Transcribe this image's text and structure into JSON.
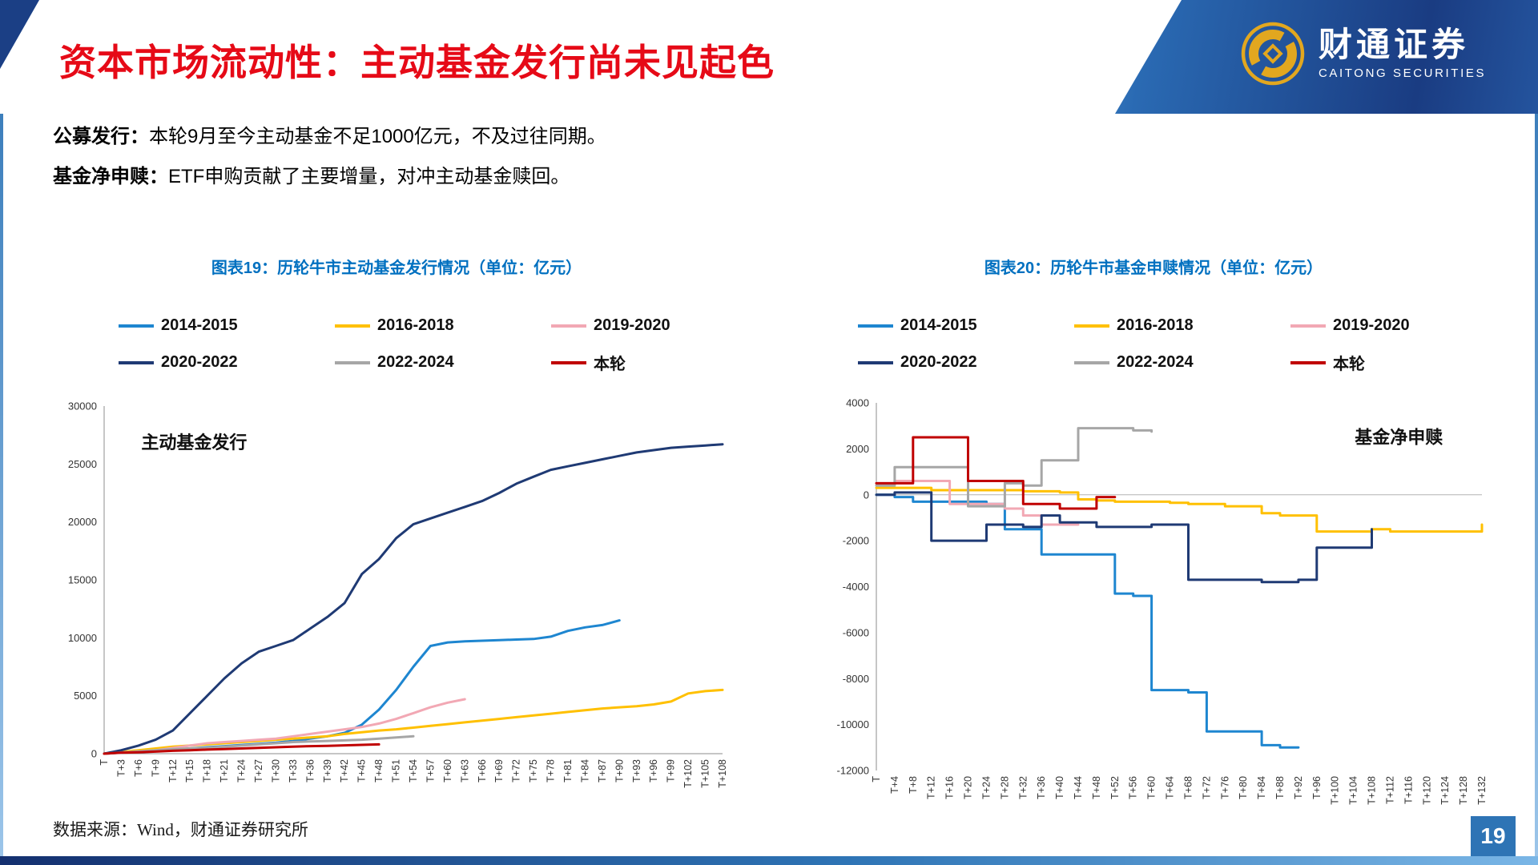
{
  "header": {
    "title": "资本市场流动性：主动基金发行尚未见起色",
    "logo_cn": "财通证券",
    "logo_en": "CAITONG SECURITIES"
  },
  "intro": [
    {
      "label": "公募发行：",
      "text": "本轮9月至今主动基金不足1000亿元，不及过往同期。"
    },
    {
      "label": "基金净申赎：",
      "text": "ETF申购贡献了主要增量，对冲主动基金赎回。"
    }
  ],
  "footer": {
    "source": "数据来源：Wind，财通证券研究所",
    "page_number": "19"
  },
  "colors": {
    "title_red": "#e60a17",
    "caption_blue": "#0070c0",
    "header_navy": "#1b3f85",
    "page_box_blue": "#2e74b5",
    "logo_gold": "#e2a71f",
    "axis_gray": "#8c8c8c"
  },
  "chart_data": [
    {
      "type": "line",
      "title": "图表19：历轮牛市主动基金发行情况（单位：亿元）",
      "inner_label": "主动基金发行",
      "inner_label_pos": [
        0.06,
        0.09
      ],
      "ylim": [
        0,
        30000
      ],
      "ytick_step": 5000,
      "xmax": 108,
      "xtick_step": 3,
      "grid": false,
      "legend_position": "top",
      "step_line": false,
      "zero_line": false,
      "x_ticks": [
        "T",
        "T+3",
        "T+6",
        "T+9",
        "T+12",
        "T+15",
        "T+18",
        "T+21",
        "T+24",
        "T+27",
        "T+30",
        "T+33",
        "T+36",
        "T+39",
        "T+42",
        "T+45",
        "T+48",
        "T+51",
        "T+54",
        "T+57",
        "T+60",
        "T+63",
        "T+66",
        "T+69",
        "T+72",
        "T+75",
        "T+78",
        "T+81",
        "T+84",
        "T+87",
        "T+90",
        "T+93",
        "T+96",
        "T+99",
        "T+102",
        "T+105",
        "T+108"
      ],
      "series": [
        {
          "name": "2014-2015",
          "color": "#1e86d0",
          "step": 3,
          "values": [
            0,
            100,
            150,
            250,
            350,
            450,
            550,
            650,
            750,
            850,
            950,
            1100,
            1300,
            1500,
            1800,
            2500,
            3800,
            5500,
            7500,
            9300,
            9600,
            9700,
            9750,
            9800,
            9850,
            9900,
            10100,
            10600,
            10900,
            11100,
            11500
          ]
        },
        {
          "name": "2016-2018",
          "color": "#ffc000",
          "step": 3,
          "values": [
            0,
            150,
            300,
            450,
            600,
            700,
            800,
            900,
            1000,
            1100,
            1200,
            1300,
            1400,
            1500,
            1700,
            1850,
            2000,
            2100,
            2250,
            2400,
            2550,
            2700,
            2850,
            3000,
            3150,
            3300,
            3450,
            3600,
            3750,
            3900,
            4000,
            4100,
            4250,
            4500,
            5200,
            5400,
            5500
          ]
        },
        {
          "name": "2019-2020",
          "color": "#f2a8b4",
          "step": 3,
          "values": [
            0,
            100,
            200,
            300,
            500,
            700,
            900,
            1000,
            1100,
            1200,
            1300,
            1500,
            1700,
            1900,
            2100,
            2300,
            2600,
            3000,
            3500,
            4000,
            4400,
            4700
          ]
        },
        {
          "name": "2020-2022",
          "color": "#1f3a74",
          "step": 3,
          "values": [
            0,
            300,
            700,
            1200,
            2000,
            3500,
            5000,
            6500,
            7800,
            8800,
            9300,
            9800,
            10800,
            11800,
            13000,
            15500,
            16800,
            18600,
            19800,
            20300,
            20800,
            21300,
            21800,
            22500,
            23300,
            23900,
            24500,
            24800,
            25100,
            25400,
            25700,
            26000,
            26200,
            26400,
            26500,
            26600,
            26700
          ]
        },
        {
          "name": "2022-2024",
          "color": "#a6a6a6",
          "step": 3,
          "values": [
            0,
            100,
            200,
            300,
            400,
            450,
            500,
            600,
            700,
            800,
            900,
            1000,
            1050,
            1100,
            1150,
            1200,
            1300,
            1400,
            1500
          ]
        },
        {
          "name": "本轮",
          "color": "#c00000",
          "step": 3,
          "values": [
            0,
            80,
            120,
            180,
            250,
            300,
            350,
            400,
            450,
            500,
            550,
            600,
            650,
            680,
            720,
            760,
            800
          ]
        }
      ]
    },
    {
      "type": "line",
      "title": "图表20：历轮牛市基金申赎情况（单位：亿元）",
      "inner_label": "基金净申赎",
      "inner_label_pos": [
        0.79,
        0.08
      ],
      "ylim": [
        -12000,
        4000
      ],
      "ytick_step": 2000,
      "xmax": 132,
      "xtick_step": 4,
      "grid": false,
      "legend_position": "top",
      "step_line": true,
      "zero_line": true,
      "x_ticks": [
        "T",
        "T+4",
        "T+8",
        "T+12",
        "T+16",
        "T+20",
        "T+24",
        "T+28",
        "T+32",
        "T+36",
        "T+40",
        "T+44",
        "T+48",
        "T+52",
        "T+56",
        "T+60",
        "T+64",
        "T+68",
        "T+72",
        "T+76",
        "T+80",
        "T+84",
        "T+88",
        "T+92",
        "T+96",
        "T+100",
        "T+104",
        "T+108",
        "T+112",
        "T+116",
        "T+120",
        "T+124",
        "T+128",
        "T+132"
      ],
      "series": [
        {
          "name": "2014-2015",
          "color": "#1e86d0",
          "step": 4,
          "values": [
            0,
            -100,
            -300,
            -300,
            -300,
            -300,
            -400,
            -1500,
            -1500,
            -2600,
            -2600,
            -2600,
            -2600,
            -4300,
            -4400,
            -8500,
            -8500,
            -8600,
            -10300,
            -10300,
            -10300,
            -10900,
            -11000,
            -11000
          ]
        },
        {
          "name": "2016-2018",
          "color": "#ffc000",
          "step": 4,
          "values": [
            300,
            300,
            300,
            200,
            200,
            200,
            200,
            200,
            150,
            150,
            100,
            -200,
            -250,
            -300,
            -300,
            -300,
            -350,
            -400,
            -400,
            -500,
            -500,
            -800,
            -900,
            -900,
            -1600,
            -1600,
            -1600,
            -1500,
            -1600,
            -1600,
            -1600,
            -1600,
            -1600,
            -1300
          ]
        },
        {
          "name": "2019-2020",
          "color": "#f2a8b4",
          "step": 4,
          "values": [
            500,
            600,
            600,
            600,
            -400,
            -400,
            -400,
            -600,
            -900,
            -1300,
            -1300,
            -1300
          ]
        },
        {
          "name": "2020-2022",
          "color": "#1f3a74",
          "step": 4,
          "values": [
            0,
            100,
            100,
            -2000,
            -2000,
            -2000,
            -1300,
            -1300,
            -1400,
            -900,
            -1200,
            -1200,
            -1400,
            -1400,
            -1400,
            -1300,
            -1300,
            -3700,
            -3700,
            -3700,
            -3700,
            -3800,
            -3800,
            -3700,
            -2300,
            -2300,
            -2300,
            -1500
          ]
        },
        {
          "name": "2022-2024",
          "color": "#a6a6a6",
          "step": 4,
          "values": [
            400,
            1200,
            1200,
            1200,
            1200,
            -500,
            -500,
            500,
            400,
            1500,
            1500,
            2900,
            2900,
            2900,
            2800,
            2750
          ]
        },
        {
          "name": "本轮",
          "color": "#c00000",
          "step": 4,
          "values": [
            500,
            500,
            2500,
            2500,
            2500,
            600,
            600,
            600,
            -400,
            -400,
            -600,
            -600,
            -100,
            -100
          ]
        }
      ]
    }
  ]
}
